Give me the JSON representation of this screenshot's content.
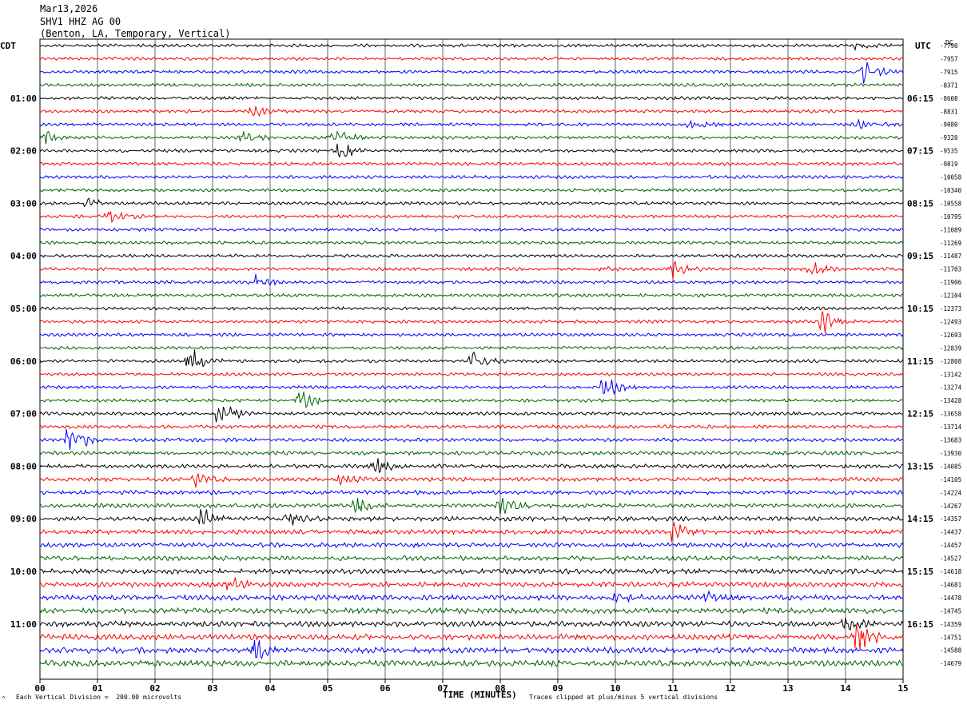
{
  "header": {
    "date": "Mar13,2026",
    "station": "SHV1 HHZ AG 00",
    "location": "(Benton, LA, Temporary, Vertical)"
  },
  "corner_labels": {
    "left": "CDT",
    "right": "UTC",
    "far_right": "DC"
  },
  "footer": {
    "scale": "Each Vertical Division =  200.00 microvolts",
    "clip": "Traces clipped at plus/minus 5 vertical divisions",
    "marker": "^"
  },
  "chart_data": {
    "type": "helicorder",
    "xlabel": "TIME (MINUTES)",
    "xlim": [
      0,
      15
    ],
    "x_ticks": [
      "00",
      "01",
      "02",
      "03",
      "04",
      "05",
      "06",
      "07",
      "08",
      "09",
      "10",
      "11",
      "12",
      "13",
      "14",
      "15"
    ],
    "trace_colors": [
      "#000000",
      "#ff0000",
      "#0000ff",
      "#006400"
    ],
    "trace_count": 48,
    "left_hour_labels": [
      "01:00",
      "02:00",
      "03:00",
      "04:00",
      "05:00",
      "06:00",
      "07:00",
      "08:00",
      "09:00",
      "10:00",
      "11:00"
    ],
    "right_hour_labels": [
      "06:15",
      "07:15",
      "08:15",
      "09:15",
      "10:15",
      "11:15",
      "12:15",
      "13:15",
      "14:15",
      "15:15",
      "16:15"
    ],
    "hour_label_trace_indices": [
      4,
      8,
      12,
      16,
      20,
      24,
      28,
      32,
      36,
      40,
      44
    ],
    "dc_offsets": [
      "-7790",
      "-7957",
      "-7915",
      "-8371",
      "-8608",
      "-8831",
      "-9080",
      "-9320",
      "-9535",
      "-9819",
      "-10058",
      "-10340",
      "-10558",
      "-10795",
      "-11089",
      "-11269",
      "-11487",
      "-11703",
      "-11906",
      "-12104",
      "-12373",
      "-12493",
      "-12693",
      "-12839",
      "-12808",
      "-13142",
      "-13274",
      "-13428",
      "-13658",
      "-13714",
      "-13683",
      "-13930",
      "-14085",
      "-14105",
      "-14224",
      "-14267",
      "-14357",
      "-14437",
      "-14457",
      "-14527",
      "-14618",
      "-14681",
      "-14478",
      "-14745",
      "-14359",
      "-14751",
      "-14588",
      "-14679"
    ],
    "events": [
      {
        "trace": 0,
        "minute": 14.2,
        "amp": 1.2
      },
      {
        "trace": 2,
        "minute": 14.3,
        "amp": 4
      },
      {
        "trace": 5,
        "minute": 3.7,
        "amp": 2
      },
      {
        "trace": 6,
        "minute": 11.3,
        "amp": 1.5
      },
      {
        "trace": 6,
        "minute": 14.2,
        "amp": 2
      },
      {
        "trace": 7,
        "minute": 0.1,
        "amp": 2
      },
      {
        "trace": 7,
        "minute": 3.5,
        "amp": 2
      },
      {
        "trace": 7,
        "minute": 5.1,
        "amp": 3
      },
      {
        "trace": 8,
        "minute": 5.2,
        "amp": 3
      },
      {
        "trace": 12,
        "minute": 0.8,
        "amp": 2
      },
      {
        "trace": 13,
        "minute": 1.2,
        "amp": 2
      },
      {
        "trace": 17,
        "minute": 9.8,
        "amp": 1.5
      },
      {
        "trace": 17,
        "minute": 11.0,
        "amp": 2.5
      },
      {
        "trace": 17,
        "minute": 13.4,
        "amp": 2.5
      },
      {
        "trace": 18,
        "minute": 3.7,
        "amp": 2.5
      },
      {
        "trace": 21,
        "minute": 13.6,
        "amp": 4
      },
      {
        "trace": 24,
        "minute": 2.6,
        "amp": 5
      },
      {
        "trace": 24,
        "minute": 7.5,
        "amp": 3
      },
      {
        "trace": 26,
        "minute": 9.8,
        "amp": 3.5
      },
      {
        "trace": 27,
        "minute": 4.5,
        "amp": 3
      },
      {
        "trace": 28,
        "minute": 3.1,
        "amp": 5
      },
      {
        "trace": 30,
        "minute": 0.5,
        "amp": 6
      },
      {
        "trace": 32,
        "minute": 5.8,
        "amp": 3
      },
      {
        "trace": 33,
        "minute": 2.7,
        "amp": 2
      },
      {
        "trace": 33,
        "minute": 5.2,
        "amp": 2
      },
      {
        "trace": 35,
        "minute": 5.5,
        "amp": 3
      },
      {
        "trace": 35,
        "minute": 8.0,
        "amp": 3.5
      },
      {
        "trace": 36,
        "minute": 2.8,
        "amp": 4
      },
      {
        "trace": 36,
        "minute": 4.3,
        "amp": 2
      },
      {
        "trace": 37,
        "minute": 11.0,
        "amp": 3
      },
      {
        "trace": 41,
        "minute": 3.3,
        "amp": 2
      },
      {
        "trace": 42,
        "minute": 10.0,
        "amp": 1.5
      },
      {
        "trace": 42,
        "minute": 11.6,
        "amp": 2.5
      },
      {
        "trace": 44,
        "minute": 14.0,
        "amp": 2
      },
      {
        "trace": 45,
        "minute": 14.2,
        "amp": 5
      },
      {
        "trace": 46,
        "minute": 3.7,
        "amp": 4
      }
    ]
  }
}
